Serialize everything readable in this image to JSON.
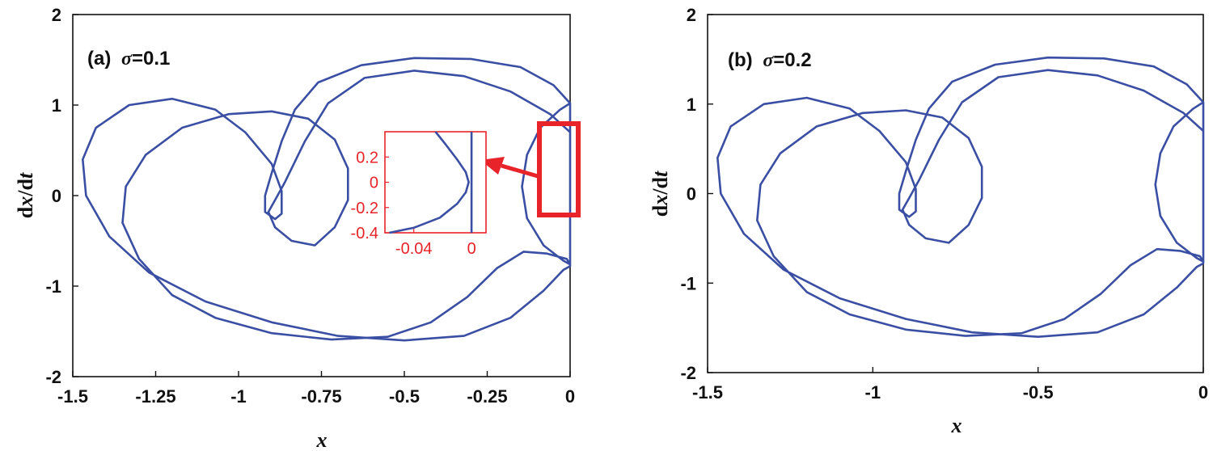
{
  "chart_data": [
    {
      "type": "line",
      "panel_label": "(a)",
      "param_symbol": "σ",
      "param_value": "=0.1",
      "xlabel": "x",
      "ylabel_prefix": "d",
      "ylabel_x": "x",
      "ylabel_mid": "/d",
      "ylabel_t": "t",
      "xlim": [
        -1.5,
        0
      ],
      "ylim": [
        -2,
        2
      ],
      "xticks": [
        "-1.5",
        "-1.25",
        "-1",
        "-0.75",
        "-0.5",
        "-0.25",
        "0"
      ],
      "xtick_values": [
        -1.5,
        -1.25,
        -1,
        -0.75,
        -0.5,
        -0.25,
        0
      ],
      "yticks": [
        "2",
        "1",
        "0",
        "-1",
        "-2"
      ],
      "ytick_values": [
        2,
        1,
        0,
        -1,
        -2
      ],
      "series": [
        {
          "color": "#3a4fa3",
          "points": [
            [
              0,
              1.02
            ],
            [
              -0.03,
              0.95
            ],
            [
              -0.09,
              0.75
            ],
            [
              -0.13,
              0.45
            ],
            [
              -0.145,
              0.1
            ],
            [
              -0.13,
              -0.25
            ],
            [
              -0.08,
              -0.55
            ],
            [
              -0.02,
              -0.72
            ],
            [
              0,
              -0.76
            ],
            [
              -0.01,
              -0.7
            ],
            [
              -0.07,
              -0.64
            ],
            [
              -0.14,
              -0.62
            ],
            [
              -0.22,
              -0.8
            ],
            [
              -0.31,
              -1.12
            ],
            [
              -0.42,
              -1.4
            ],
            [
              -0.55,
              -1.56
            ],
            [
              -0.72,
              -1.59
            ],
            [
              -0.9,
              -1.52
            ],
            [
              -1.07,
              -1.35
            ],
            [
              -1.2,
              -1.1
            ],
            [
              -1.3,
              -0.7
            ],
            [
              -1.35,
              -0.3
            ],
            [
              -1.34,
              0.1
            ],
            [
              -1.28,
              0.45
            ],
            [
              -1.17,
              0.75
            ],
            [
              -1.03,
              0.9
            ],
            [
              -0.9,
              0.93
            ],
            [
              -0.79,
              0.85
            ],
            [
              -0.71,
              0.62
            ],
            [
              -0.67,
              0.3
            ],
            [
              -0.67,
              -0.05
            ],
            [
              -0.71,
              -0.35
            ],
            [
              -0.77,
              -0.55
            ],
            [
              -0.84,
              -0.5
            ],
            [
              -0.89,
              -0.35
            ],
            [
              -0.91,
              -0.18
            ],
            [
              -0.89,
              -0.05
            ],
            [
              -0.86,
              0.15
            ],
            [
              -0.8,
              0.6
            ],
            [
              -0.73,
              1.02
            ],
            [
              -0.62,
              1.3
            ],
            [
              -0.47,
              1.38
            ],
            [
              -0.32,
              1.32
            ],
            [
              -0.18,
              1.15
            ],
            [
              -0.06,
              0.9
            ],
            [
              0,
              0.7
            ],
            [
              0,
              1.02
            ],
            [
              -0.05,
              1.22
            ],
            [
              -0.15,
              1.42
            ],
            [
              -0.3,
              1.51
            ],
            [
              -0.47,
              1.52
            ],
            [
              -0.63,
              1.44
            ],
            [
              -0.76,
              1.25
            ],
            [
              -0.83,
              0.95
            ],
            [
              -0.87,
              0.6
            ],
            [
              -0.9,
              0.25
            ],
            [
              -0.92,
              0.0
            ],
            [
              -0.92,
              -0.18
            ],
            [
              -0.89,
              -0.26
            ],
            [
              -0.87,
              -0.2
            ],
            [
              -0.87,
              0.05
            ],
            [
              -0.9,
              0.35
            ],
            [
              -0.98,
              0.7
            ],
            [
              -1.07,
              0.95
            ],
            [
              -1.2,
              1.07
            ],
            [
              -1.33,
              1.0
            ],
            [
              -1.43,
              0.75
            ],
            [
              -1.47,
              0.4
            ],
            [
              -1.46,
              0.0
            ],
            [
              -1.39,
              -0.45
            ],
            [
              -1.27,
              -0.85
            ],
            [
              -1.1,
              -1.17
            ],
            [
              -0.9,
              -1.4
            ],
            [
              -0.7,
              -1.55
            ],
            [
              -0.5,
              -1.6
            ],
            [
              -0.32,
              -1.55
            ],
            [
              -0.18,
              -1.35
            ],
            [
              -0.08,
              -1.05
            ],
            [
              -0.02,
              -0.82
            ],
            [
              0,
              -0.78
            ],
            [
              0,
              -0.78
            ],
            [
              0,
              1.02
            ]
          ]
        }
      ],
      "inset": {
        "xlim": [
          -0.06,
          0.01
        ],
        "ylim": [
          -0.4,
          0.4
        ],
        "xticks": [
          "-0.04",
          "0"
        ],
        "xtick_values": [
          -0.04,
          0
        ],
        "yticks": [
          "0.2",
          "0",
          "-0.2",
          "-0.4"
        ],
        "ytick_values": [
          0.2,
          0,
          -0.2,
          -0.4
        ],
        "color": "#e8232a",
        "curves": [
          [
            [
              -0.025,
              0.4
            ],
            [
              -0.018,
              0.3
            ],
            [
              -0.01,
              0.18
            ],
            [
              -0.004,
              0.08
            ],
            [
              -0.002,
              0.0
            ],
            [
              -0.004,
              -0.08
            ],
            [
              -0.01,
              -0.17
            ],
            [
              -0.022,
              -0.28
            ],
            [
              -0.04,
              -0.36
            ],
            [
              -0.057,
              -0.4
            ]
          ],
          [
            [
              0.0,
              0.4
            ],
            [
              0.0,
              -0.4
            ]
          ]
        ]
      }
    },
    {
      "type": "line",
      "panel_label": "(b)",
      "param_symbol": "σ",
      "param_value": "=0.2",
      "xlabel": "x",
      "ylabel_prefix": "d",
      "ylabel_x": "x",
      "ylabel_mid": "/d",
      "ylabel_t": "t",
      "xlim": [
        -1.5,
        0
      ],
      "ylim": [
        -2,
        2
      ],
      "xticks": [
        "-1.5",
        "-1",
        "-0.5",
        "0"
      ],
      "xtick_values": [
        -1.5,
        -1,
        -0.5,
        0
      ],
      "yticks": [
        "2",
        "1",
        "0",
        "-1",
        "-2"
      ],
      "ytick_values": [
        2,
        1,
        0,
        -1,
        -2
      ],
      "series": [
        {
          "color": "#3a4fa3",
          "points": [
            [
              0,
              1.02
            ],
            [
              -0.03,
              0.95
            ],
            [
              -0.09,
              0.75
            ],
            [
              -0.13,
              0.45
            ],
            [
              -0.145,
              0.1
            ],
            [
              -0.13,
              -0.25
            ],
            [
              -0.08,
              -0.55
            ],
            [
              -0.02,
              -0.72
            ],
            [
              0,
              -0.76
            ],
            [
              -0.01,
              -0.7
            ],
            [
              -0.07,
              -0.64
            ],
            [
              -0.14,
              -0.62
            ],
            [
              -0.22,
              -0.8
            ],
            [
              -0.31,
              -1.12
            ],
            [
              -0.42,
              -1.4
            ],
            [
              -0.55,
              -1.56
            ],
            [
              -0.72,
              -1.59
            ],
            [
              -0.9,
              -1.52
            ],
            [
              -1.07,
              -1.35
            ],
            [
              -1.2,
              -1.1
            ],
            [
              -1.3,
              -0.7
            ],
            [
              -1.35,
              -0.3
            ],
            [
              -1.34,
              0.1
            ],
            [
              -1.28,
              0.45
            ],
            [
              -1.17,
              0.75
            ],
            [
              -1.03,
              0.9
            ],
            [
              -0.9,
              0.93
            ],
            [
              -0.79,
              0.85
            ],
            [
              -0.71,
              0.62
            ],
            [
              -0.67,
              0.3
            ],
            [
              -0.67,
              -0.05
            ],
            [
              -0.71,
              -0.35
            ],
            [
              -0.77,
              -0.55
            ],
            [
              -0.84,
              -0.5
            ],
            [
              -0.89,
              -0.35
            ],
            [
              -0.91,
              -0.18
            ],
            [
              -0.89,
              -0.05
            ],
            [
              -0.86,
              0.15
            ],
            [
              -0.8,
              0.6
            ],
            [
              -0.73,
              1.02
            ],
            [
              -0.62,
              1.3
            ],
            [
              -0.47,
              1.38
            ],
            [
              -0.32,
              1.32
            ],
            [
              -0.18,
              1.15
            ],
            [
              -0.06,
              0.9
            ],
            [
              0,
              0.7
            ],
            [
              0,
              1.02
            ],
            [
              -0.05,
              1.22
            ],
            [
              -0.15,
              1.42
            ],
            [
              -0.3,
              1.51
            ],
            [
              -0.47,
              1.52
            ],
            [
              -0.63,
              1.44
            ],
            [
              -0.76,
              1.25
            ],
            [
              -0.83,
              0.95
            ],
            [
              -0.87,
              0.6
            ],
            [
              -0.9,
              0.25
            ],
            [
              -0.92,
              0.0
            ],
            [
              -0.92,
              -0.18
            ],
            [
              -0.89,
              -0.26
            ],
            [
              -0.87,
              -0.2
            ],
            [
              -0.87,
              0.05
            ],
            [
              -0.9,
              0.35
            ],
            [
              -0.98,
              0.7
            ],
            [
              -1.07,
              0.95
            ],
            [
              -1.2,
              1.07
            ],
            [
              -1.33,
              1.0
            ],
            [
              -1.43,
              0.75
            ],
            [
              -1.47,
              0.4
            ],
            [
              -1.46,
              0.0
            ],
            [
              -1.39,
              -0.45
            ],
            [
              -1.27,
              -0.85
            ],
            [
              -1.1,
              -1.17
            ],
            [
              -0.9,
              -1.4
            ],
            [
              -0.7,
              -1.55
            ],
            [
              -0.5,
              -1.6
            ],
            [
              -0.32,
              -1.55
            ],
            [
              -0.18,
              -1.35
            ],
            [
              -0.08,
              -1.05
            ],
            [
              -0.02,
              -0.82
            ],
            [
              0,
              -0.78
            ],
            [
              0,
              -0.78
            ],
            [
              0,
              1.02
            ]
          ]
        }
      ]
    }
  ]
}
